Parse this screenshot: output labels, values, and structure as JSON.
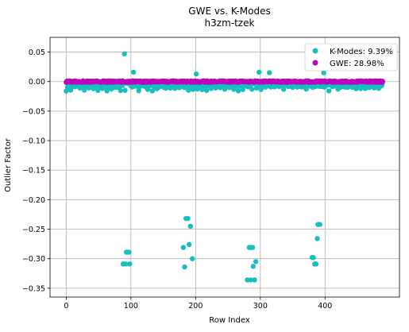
{
  "chart_data": {
    "type": "scatter",
    "title": "GWE vs. K-Modes",
    "subtitle": "h3zm-tzek",
    "xlabel": "Row Index",
    "ylabel": "Outlier Factor",
    "xlim": [
      -25,
      515
    ],
    "ylim": [
      -0.365,
      0.075
    ],
    "xticks": [
      0,
      100,
      200,
      300,
      400
    ],
    "yticks": [
      0.05,
      0.0,
      -0.05,
      -0.1,
      -0.15,
      -0.2,
      -0.25,
      -0.3,
      -0.35
    ],
    "xtick_labels": [
      "0",
      "100",
      "200",
      "300",
      "400"
    ],
    "ytick_labels": [
      "0.05",
      "0.00",
      "−0.05",
      "−0.10",
      "−0.15",
      "−0.20",
      "−0.25",
      "−0.30",
      "−0.35"
    ],
    "grid": true,
    "legend_position": "top-right",
    "n_points": 490,
    "series": [
      {
        "name": "K-Modes: 9.39%",
        "color": "#17bfbf",
        "baseline": -0.006,
        "outliers": [
          {
            "x": 88,
            "y": -0.309
          },
          {
            "x": 92,
            "y": -0.309
          },
          {
            "x": 93,
            "y": -0.289
          },
          {
            "x": 95,
            "y": -0.289
          },
          {
            "x": 97,
            "y": -0.289
          },
          {
            "x": 98,
            "y": -0.309
          },
          {
            "x": 181,
            "y": -0.281
          },
          {
            "x": 183,
            "y": -0.314
          },
          {
            "x": 185,
            "y": -0.232
          },
          {
            "x": 188,
            "y": -0.232
          },
          {
            "x": 190,
            "y": -0.276
          },
          {
            "x": 192,
            "y": -0.245
          },
          {
            "x": 195,
            "y": -0.3
          },
          {
            "x": 280,
            "y": -0.336
          },
          {
            "x": 283,
            "y": -0.281
          },
          {
            "x": 285,
            "y": -0.336
          },
          {
            "x": 286,
            "y": -0.281
          },
          {
            "x": 288,
            "y": -0.281
          },
          {
            "x": 289,
            "y": -0.313
          },
          {
            "x": 291,
            "y": -0.336
          },
          {
            "x": 293,
            "y": -0.305
          },
          {
            "x": 380,
            "y": -0.298
          },
          {
            "x": 382,
            "y": -0.298
          },
          {
            "x": 384,
            "y": -0.309
          },
          {
            "x": 386,
            "y": -0.309
          },
          {
            "x": 388,
            "y": -0.266
          },
          {
            "x": 389,
            "y": -0.242
          },
          {
            "x": 392,
            "y": -0.242
          },
          {
            "x": 90,
            "y": 0.047
          },
          {
            "x": 104,
            "y": 0.016
          },
          {
            "x": 201,
            "y": 0.013
          },
          {
            "x": 298,
            "y": 0.016
          },
          {
            "x": 314,
            "y": 0.015
          },
          {
            "x": 398,
            "y": 0.015
          }
        ]
      },
      {
        "name": "GWE: 28.98%",
        "color": "#bf00bf",
        "baseline": 0.0
      }
    ]
  }
}
